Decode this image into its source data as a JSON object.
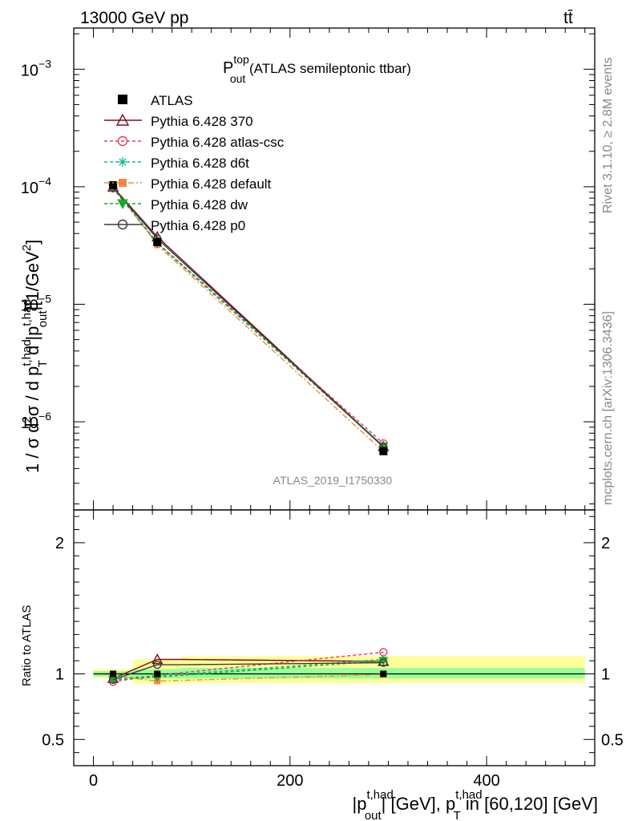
{
  "header": {
    "left": "13000 GeV pp",
    "right": "tt̄"
  },
  "side": {
    "rivet": "Rivet 3.1.10, ≥ 2.8M events",
    "mcplots": "mcplots.cern.ch [arXiv:1306.3436]"
  },
  "chart_data": {
    "type": "line",
    "title": {
      "main": "P",
      "sup": "top",
      "sub": "out",
      "rest": " (ATLAS semileptonic ttbar)"
    },
    "watermark": "ATLAS_2019_I1750330",
    "xlabel": "|p^{t,had}_{out}| [GeV], p^{t,had}_{T} in [60,120] [GeV]",
    "xlabel_parts": {
      "a": "|p",
      "a_sup": "t,had",
      "a_sub": "out",
      "b": "| [GeV], p",
      "b_sup": "t,had",
      "b_sub": "T",
      "c": " in [60,120] [GeV]"
    },
    "ylabel_parts": {
      "a": "1 / σ d",
      "a_sup": "2",
      "b": "σ / d p",
      "b_sup": "t,had",
      "b_sub": "T",
      "c": " d |p",
      "c_sup": "t,had",
      "c_sub": "out",
      "d": "|[1/GeV",
      "d_sup": "2",
      "e": "]"
    },
    "ratio_ylabel": "Ratio to ATLAS",
    "xlim": [
      -20,
      510
    ],
    "ylim_main_log10": [
      -6.75,
      -2.65
    ],
    "ylim_ratio": [
      0.3,
      2.25
    ],
    "x_ticks": [
      0,
      200,
      400
    ],
    "x_tick_labels": [
      "0",
      "200",
      "400"
    ],
    "y_main_ticks": [
      {
        "mant": "10",
        "exp": "−3",
        "value": -3
      },
      {
        "mant": "10",
        "exp": "−4",
        "value": -4
      },
      {
        "mant": "10",
        "exp": "−5",
        "value": -5
      },
      {
        "mant": "10",
        "exp": "−6",
        "value": -6
      }
    ],
    "y_ratio_ticks": [
      0.5,
      1,
      2
    ],
    "y_ratio_tick_labels": [
      "0.5",
      "1",
      "2"
    ],
    "bins": [
      [
        0,
        40
      ],
      [
        40,
        90
      ],
      [
        90,
        500
      ]
    ],
    "x": [
      20,
      65,
      295
    ],
    "data": {
      "name": "ATLAS",
      "values": [
        0.000103,
        3.38e-05,
        5.62e-07
      ]
    },
    "ratio_bands": [
      {
        "x": [
          0,
          40
        ],
        "yellow": [
          0.965,
          1.035
        ],
        "green": [
          0.98,
          1.02
        ]
      },
      {
        "x": [
          40,
          90
        ],
        "yellow": [
          0.925,
          1.11
        ],
        "green": [
          0.965,
          1.035
        ]
      },
      {
        "x": [
          90,
          500
        ],
        "yellow": [
          0.93,
          1.135
        ],
        "green": [
          0.965,
          1.045
        ]
      }
    ],
    "series": [
      {
        "name": "Pythia 6.428 370",
        "color": "#7b0f1c",
        "dash": "",
        "marker": "triangle",
        "values": [
          0.965,
          1.11,
          1.095
        ],
        "style": "step"
      },
      {
        "name": "Pythia 6.428 atlas-csc",
        "color": "#f0395a",
        "dash": "4,3",
        "marker": "circle",
        "values": [
          0.94,
          0.99,
          1.165
        ],
        "style": "line"
      },
      {
        "name": "Pythia 6.428 d6t",
        "color": "#16b894",
        "dash": "4,3",
        "marker": "star",
        "values": [
          0.965,
          0.985,
          1.11
        ],
        "style": "line"
      },
      {
        "name": "Pythia 6.428 default",
        "color": "#f58a3c",
        "dash": "7,3,2,3",
        "marker": "square",
        "values": [
          0.985,
          0.945,
          0.995
        ],
        "style": "line"
      },
      {
        "name": "Pythia 6.428 dw",
        "color": "#1aa82a",
        "dash": "4,3",
        "marker": "triangle-down",
        "values": [
          0.955,
          0.975,
          1.1
        ],
        "style": "line"
      },
      {
        "name": "Pythia 6.428 p0",
        "color": "#3a3a3a",
        "dash": "",
        "marker": "circle",
        "values": [
          0.955,
          1.07,
          1.085
        ],
        "style": "step"
      }
    ],
    "legend_position": "top-left"
  }
}
